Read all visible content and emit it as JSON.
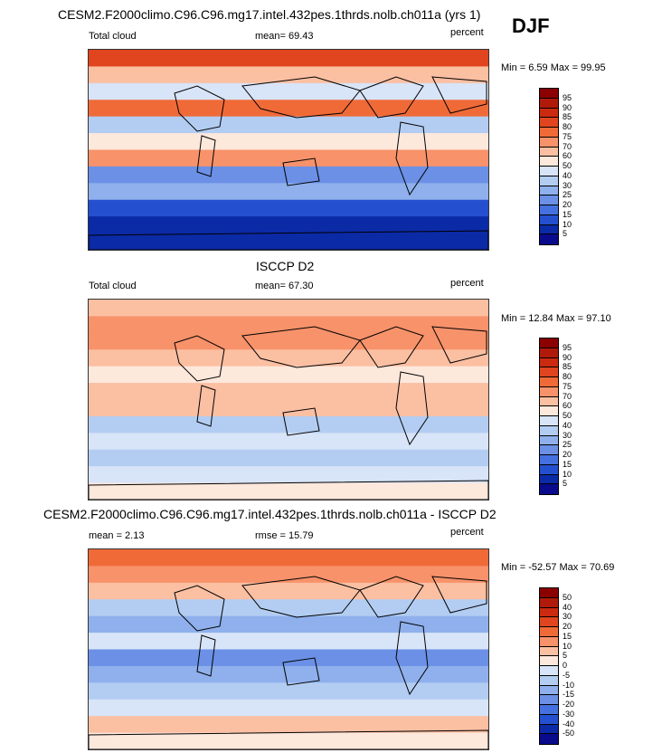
{
  "season": "DJF",
  "chart_data": [
    {
      "type": "heatmap",
      "title": "CESM2.F2000climo.C96.C96.mg17.intel.432pes.1thrds.nolb.ch011a (yrs 1)",
      "left_label": "Total cloud",
      "center_label": "mean=  69.43",
      "right_label": "percent",
      "minmax": "Min =   6.59 Max =  99.95",
      "levels": [
        "95",
        "90",
        "85",
        "80",
        "75",
        "70",
        "60",
        "50",
        "40",
        "30",
        "25",
        "20",
        "15",
        "10",
        "5"
      ],
      "colors": [
        "#8b0000",
        "#b01a0a",
        "#cc2a10",
        "#e0451f",
        "#f06a38",
        "#f7926a",
        "#fbbfa2",
        "#fde8dc",
        "#d8e4f7",
        "#b3cdf2",
        "#8fb0ec",
        "#6b90e6",
        "#4570e0",
        "#2450d0",
        "#0b2aa6",
        "#0a0a8c"
      ],
      "zones": [
        3,
        6,
        8,
        4,
        9,
        7,
        5,
        11,
        10,
        13,
        14,
        14
      ]
    },
    {
      "type": "heatmap",
      "title": "ISCCP D2",
      "left_label": "Total cloud",
      "center_label": "mean=  67.30",
      "right_label": "percent",
      "minmax": "Min =  12.84 Max =  97.10",
      "levels": [
        "95",
        "90",
        "85",
        "80",
        "75",
        "70",
        "60",
        "50",
        "40",
        "30",
        "25",
        "20",
        "15",
        "10",
        "5"
      ],
      "colors": [
        "#8b0000",
        "#b01a0a",
        "#cc2a10",
        "#e0451f",
        "#f06a38",
        "#f7926a",
        "#fbbfa2",
        "#fde8dc",
        "#d8e4f7",
        "#b3cdf2",
        "#8fb0ec",
        "#6b90e6",
        "#4570e0",
        "#2450d0",
        "#0b2aa6",
        "#0a0a8c"
      ],
      "zones": [
        6,
        5,
        5,
        6,
        7,
        6,
        6,
        9,
        8,
        9,
        8,
        7
      ]
    },
    {
      "type": "heatmap",
      "title": "CESM2.F2000climo.C96.C96.mg17.intel.432pes.1thrds.nolb.ch011a - ISCCP D2",
      "left_label": "mean =   2.13",
      "center_label": "rmse =  15.79",
      "right_label": "percent",
      "minmax": "Min = -52.57 Max =  70.69",
      "levels": [
        "50",
        "40",
        "30",
        "20",
        "15",
        "10",
        "5",
        "0",
        "-5",
        "-10",
        "-15",
        "-20",
        "-30",
        "-40",
        "-50"
      ],
      "colors": [
        "#8b0000",
        "#b01a0a",
        "#cc2a10",
        "#e0451f",
        "#f06a38",
        "#f7926a",
        "#fbbfa2",
        "#fde8dc",
        "#d8e4f7",
        "#b3cdf2",
        "#8fb0ec",
        "#6b90e6",
        "#4570e0",
        "#2450d0",
        "#0b2aa6",
        "#0a0a8c"
      ],
      "zones": [
        4,
        5,
        6,
        9,
        10,
        8,
        11,
        10,
        9,
        8,
        6,
        7
      ]
    }
  ]
}
